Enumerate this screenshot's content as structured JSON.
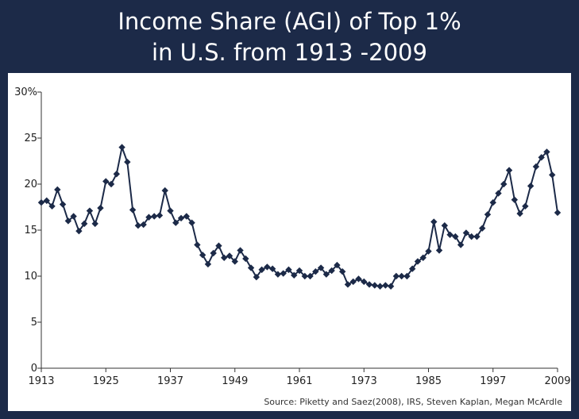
{
  "title_line1": "Income Share (AGI) of Top 1%",
  "title_line2": "in U.S. from 1913 -2009",
  "source": "Source: Piketty and Saez(2008), IRS, Steven Kaplan, Megan McArdle",
  "colors": {
    "header_bg": "#1c2a48",
    "series": "#1c2a48",
    "axis": "#333333"
  },
  "chart_data": {
    "type": "line",
    "title": "Income Share (AGI) of Top 1% in U.S. from 1913 -2009",
    "xlabel": "",
    "ylabel": "",
    "xlim": [
      1913,
      2009
    ],
    "ylim": [
      0,
      30
    ],
    "x_ticks": [
      1913,
      1925,
      1937,
      1949,
      1961,
      1973,
      1985,
      1997,
      2009
    ],
    "y_ticks": [
      0,
      5,
      10,
      15,
      20,
      25,
      30
    ],
    "y_tick_labels": [
      "0",
      "5",
      "10",
      "15",
      "20",
      "25",
      "30%"
    ],
    "grid": false,
    "marker": "diamond",
    "x": [
      1913,
      1914,
      1915,
      1916,
      1917,
      1918,
      1919,
      1920,
      1921,
      1922,
      1923,
      1924,
      1925,
      1926,
      1927,
      1928,
      1929,
      1930,
      1931,
      1932,
      1933,
      1934,
      1935,
      1936,
      1937,
      1938,
      1939,
      1940,
      1941,
      1942,
      1943,
      1944,
      1945,
      1946,
      1947,
      1948,
      1949,
      1950,
      1951,
      1952,
      1953,
      1954,
      1955,
      1956,
      1957,
      1958,
      1959,
      1960,
      1961,
      1962,
      1963,
      1964,
      1965,
      1966,
      1967,
      1968,
      1969,
      1970,
      1971,
      1972,
      1973,
      1974,
      1975,
      1976,
      1977,
      1978,
      1979,
      1980,
      1981,
      1982,
      1983,
      1984,
      1985,
      1986,
      1987,
      1988,
      1989,
      1990,
      1991,
      1992,
      1993,
      1994,
      1995,
      1996,
      1997,
      1998,
      1999,
      2000,
      2001,
      2002,
      2003,
      2004,
      2005,
      2006,
      2007,
      2008,
      2009
    ],
    "values": [
      18.0,
      18.2,
      17.6,
      19.4,
      17.8,
      16.0,
      16.5,
      14.9,
      15.7,
      17.1,
      15.7,
      17.4,
      20.3,
      20.0,
      21.1,
      24.0,
      22.4,
      17.2,
      15.5,
      15.6,
      16.4,
      16.5,
      16.6,
      19.3,
      17.1,
      15.8,
      16.3,
      16.5,
      15.8,
      13.4,
      12.3,
      11.3,
      12.5,
      13.3,
      12.0,
      12.2,
      11.6,
      12.8,
      11.9,
      10.9,
      9.9,
      10.7,
      11.0,
      10.8,
      10.2,
      10.3,
      10.7,
      10.1,
      10.6,
      10.0,
      10.0,
      10.5,
      10.9,
      10.2,
      10.6,
      11.2,
      10.5,
      9.1,
      9.4,
      9.7,
      9.4,
      9.1,
      9.0,
      8.9,
      9.0,
      8.9,
      10.0,
      10.0,
      10.0,
      10.8,
      11.6,
      12.0,
      12.7,
      15.9,
      12.8,
      15.5,
      14.5,
      14.3,
      13.4,
      14.7,
      14.3,
      14.3,
      15.2,
      16.7,
      18.0,
      19.0,
      20.0,
      21.5,
      18.3,
      16.8,
      17.6,
      19.8,
      21.9,
      22.9,
      23.5,
      21.0,
      16.9
    ]
  }
}
